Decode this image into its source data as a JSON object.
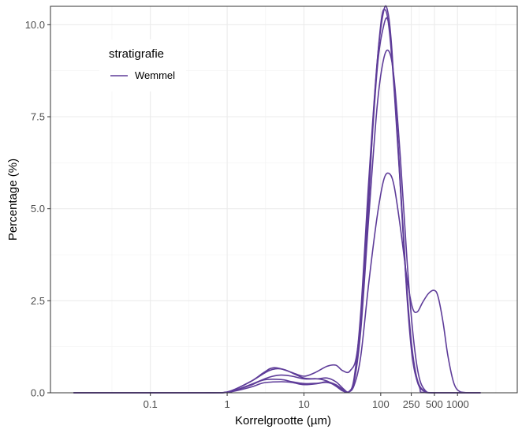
{
  "chart_data": {
    "type": "line",
    "title": "",
    "xlabel": "Korrelgrootte (µm)",
    "ylabel": "Percentage (%)",
    "x_scale": "log10",
    "xlim": [
      0.005,
      6000
    ],
    "ylim": [
      0,
      10.5
    ],
    "x_ticks": [
      {
        "value": 0.1,
        "label": "0.1"
      },
      {
        "value": 1,
        "label": "1"
      },
      {
        "value": 10,
        "label": "10"
      },
      {
        "value": 100,
        "label": "100"
      },
      {
        "value": 250,
        "label": "250"
      },
      {
        "value": 500,
        "label": "500"
      },
      {
        "value": 1000,
        "label": "1000"
      }
    ],
    "y_ticks": [
      {
        "value": 0,
        "label": "0.0"
      },
      {
        "value": 2.5,
        "label": "2.5"
      },
      {
        "value": 5,
        "label": "5.0"
      },
      {
        "value": 7.5,
        "label": "7.5"
      },
      {
        "value": 10,
        "label": "10.0"
      }
    ],
    "grid": true,
    "legend": {
      "title": "stratigrafie",
      "position": "top-left",
      "entries": [
        {
          "label": "Wemmel",
          "color": "#5e3c99"
        }
      ]
    },
    "line_color": "#5e3c99",
    "series": [
      {
        "group": "Wemmel",
        "points": [
          [
            0.01,
            0
          ],
          [
            0.5,
            0
          ],
          [
            1,
            0.02
          ],
          [
            2,
            0.3
          ],
          [
            3.5,
            0.6
          ],
          [
            5,
            0.65
          ],
          [
            7,
            0.55
          ],
          [
            10,
            0.45
          ],
          [
            14,
            0.55
          ],
          [
            20,
            0.72
          ],
          [
            26,
            0.75
          ],
          [
            32,
            0.6
          ],
          [
            40,
            0.6
          ],
          [
            50,
            1.2
          ],
          [
            65,
            4.0
          ],
          [
            80,
            7.5
          ],
          [
            100,
            10.0
          ],
          [
            115,
            10.4
          ],
          [
            130,
            9.8
          ],
          [
            150,
            8.2
          ],
          [
            180,
            5.6
          ],
          [
            220,
            2.6
          ],
          [
            260,
            0.9
          ],
          [
            320,
            0.15
          ],
          [
            400,
            0
          ],
          [
            2000,
            0
          ]
        ]
      },
      {
        "group": "Wemmel",
        "points": [
          [
            0.01,
            0
          ],
          [
            0.5,
            0
          ],
          [
            1,
            0.02
          ],
          [
            2,
            0.3
          ],
          [
            3,
            0.55
          ],
          [
            4,
            0.68
          ],
          [
            6,
            0.6
          ],
          [
            10,
            0.4
          ],
          [
            15,
            0.38
          ],
          [
            20,
            0.32
          ],
          [
            26,
            0.18
          ],
          [
            32,
            0.05
          ],
          [
            38,
            0.02
          ],
          [
            45,
            0.4
          ],
          [
            55,
            2.2
          ],
          [
            70,
            5.8
          ],
          [
            90,
            9.0
          ],
          [
            110,
            10.4
          ],
          [
            125,
            10.3
          ],
          [
            140,
            9.3
          ],
          [
            170,
            6.5
          ],
          [
            210,
            3.3
          ],
          [
            250,
            1.3
          ],
          [
            300,
            0.3
          ],
          [
            380,
            0.02
          ],
          [
            500,
            0
          ],
          [
            2000,
            0
          ]
        ]
      },
      {
        "group": "Wemmel",
        "points": [
          [
            0.01,
            0
          ],
          [
            0.5,
            0
          ],
          [
            1,
            0.01
          ],
          [
            2,
            0.22
          ],
          [
            3.5,
            0.42
          ],
          [
            5,
            0.48
          ],
          [
            7,
            0.45
          ],
          [
            10,
            0.38
          ],
          [
            15,
            0.38
          ],
          [
            20,
            0.4
          ],
          [
            26,
            0.3
          ],
          [
            33,
            0.1
          ],
          [
            38,
            0.02
          ],
          [
            45,
            0.35
          ],
          [
            55,
            2.0
          ],
          [
            70,
            5.5
          ],
          [
            90,
            8.8
          ],
          [
            110,
            10.0
          ],
          [
            125,
            10.1
          ],
          [
            140,
            9.2
          ],
          [
            170,
            6.6
          ],
          [
            210,
            3.4
          ],
          [
            250,
            1.4
          ],
          [
            300,
            0.35
          ],
          [
            380,
            0.03
          ],
          [
            500,
            0
          ],
          [
            2000,
            0
          ]
        ]
      },
      {
        "group": "Wemmel",
        "points": [
          [
            0.01,
            0
          ],
          [
            0.5,
            0
          ],
          [
            1,
            0.01
          ],
          [
            2,
            0.2
          ],
          [
            3,
            0.35
          ],
          [
            5,
            0.36
          ],
          [
            7,
            0.3
          ],
          [
            10,
            0.25
          ],
          [
            15,
            0.26
          ],
          [
            20,
            0.28
          ],
          [
            26,
            0.2
          ],
          [
            33,
            0.06
          ],
          [
            38,
            0.02
          ],
          [
            45,
            0.3
          ],
          [
            55,
            1.7
          ],
          [
            70,
            4.8
          ],
          [
            90,
            7.8
          ],
          [
            110,
            9.1
          ],
          [
            130,
            9.25
          ],
          [
            150,
            8.5
          ],
          [
            180,
            6.4
          ],
          [
            220,
            3.6
          ],
          [
            260,
            1.7
          ],
          [
            310,
            0.5
          ],
          [
            380,
            0.06
          ],
          [
            500,
            0
          ],
          [
            2000,
            0
          ]
        ]
      },
      {
        "group": "Wemmel",
        "points": [
          [
            0.01,
            0
          ],
          [
            0.5,
            0
          ],
          [
            1,
            0.01
          ],
          [
            2,
            0.15
          ],
          [
            3,
            0.27
          ],
          [
            5,
            0.3
          ],
          [
            7,
            0.28
          ],
          [
            10,
            0.22
          ],
          [
            15,
            0.25
          ],
          [
            20,
            0.3
          ],
          [
            26,
            0.22
          ],
          [
            33,
            0.07
          ],
          [
            38,
            0.02
          ],
          [
            45,
            0.2
          ],
          [
            55,
            1.0
          ],
          [
            70,
            3.0
          ],
          [
            90,
            4.8
          ],
          [
            110,
            5.8
          ],
          [
            130,
            5.95
          ],
          [
            150,
            5.6
          ],
          [
            180,
            4.5
          ],
          [
            220,
            3.1
          ],
          [
            260,
            2.3
          ],
          [
            300,
            2.2
          ],
          [
            350,
            2.45
          ],
          [
            420,
            2.7
          ],
          [
            500,
            2.78
          ],
          [
            560,
            2.6
          ],
          [
            650,
            1.9
          ],
          [
            750,
            1.0
          ],
          [
            900,
            0.25
          ],
          [
            1100,
            0.02
          ],
          [
            1500,
            0
          ],
          [
            2000,
            0
          ]
        ]
      }
    ]
  }
}
